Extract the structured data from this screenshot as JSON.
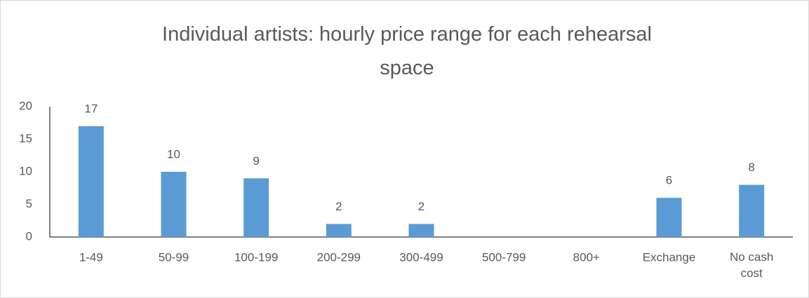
{
  "chart_data": {
    "type": "bar",
    "title": "Individual artists: hourly price range for each rehearsal space",
    "categories": [
      "1-49",
      "50-99",
      "100-199",
      "200-299",
      "300-499",
      "500-799",
      "800+",
      "Exchange",
      "No cash cost"
    ],
    "values": [
      17,
      10,
      9,
      2,
      2,
      null,
      null,
      6,
      8
    ],
    "color": "#5b9bd5",
    "ylim": [
      0,
      20
    ],
    "yticks": [
      0,
      5,
      10,
      15,
      20
    ],
    "grid": false
  }
}
